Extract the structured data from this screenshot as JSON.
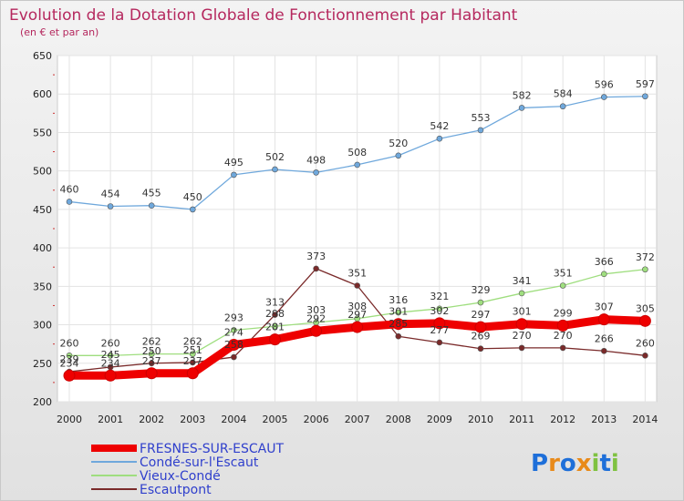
{
  "chart_data": {
    "type": "line",
    "title": "Evolution de la Dotation Globale de Fonctionnement par Habitant",
    "subtitle": "(en € et par an)",
    "x": [
      "2000",
      "2001",
      "2002",
      "2003",
      "2004",
      "2005",
      "2006",
      "2007",
      "2008",
      "2009",
      "2010",
      "2011",
      "2012",
      "2013",
      "2014"
    ],
    "ylim": [
      200,
      650
    ],
    "yticks": [
      200,
      250,
      300,
      350,
      400,
      450,
      500,
      550,
      600,
      650
    ],
    "grid": true,
    "legend_position": "bottom-left",
    "series": [
      {
        "name": "FRESNES-SUR-ESCAUT",
        "color": "#ee0000",
        "values": [
          234,
          234,
          237,
          237,
          274,
          281,
          292,
          297,
          301,
          302,
          297,
          301,
          299,
          307,
          305
        ]
      },
      {
        "name": "Condé-sur-l'Escaut",
        "color": "#6fa8dc",
        "values": [
          460,
          454,
          455,
          450,
          495,
          502,
          498,
          508,
          520,
          542,
          553,
          582,
          584,
          596,
          597
        ]
      },
      {
        "name": "Vieux-Condé",
        "color": "#9fde7f",
        "values": [
          260,
          260,
          262,
          262,
          293,
          298,
          303,
          308,
          316,
          321,
          329,
          341,
          351,
          366,
          372
        ]
      },
      {
        "name": "Escautpont",
        "color": "#7a2a2a",
        "values": [
          239,
          245,
          250,
          251,
          258,
          313,
          373,
          351,
          285,
          277,
          269,
          270,
          270,
          266,
          260
        ]
      }
    ]
  },
  "logo": {
    "text": "Proxiti",
    "letters": [
      "P",
      "r",
      "o",
      "x",
      "i",
      "t",
      "i"
    ],
    "colors": [
      "#1e6fd9",
      "#e88a1a",
      "#1e6fd9",
      "#e88a1a",
      "#7fc241",
      "#1e6fd9",
      "#7fc241"
    ]
  }
}
